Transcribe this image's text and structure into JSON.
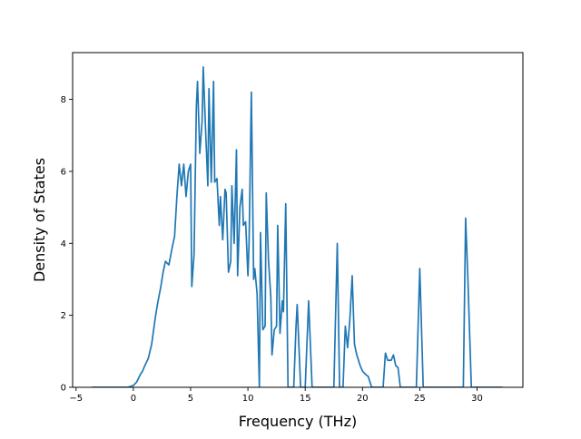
{
  "chart_data": {
    "type": "line",
    "title": "",
    "xlabel": "Frequency (THz)",
    "ylabel": "Density of States",
    "xlim": [
      -5.3,
      34.0
    ],
    "ylim": [
      0,
      9.3
    ],
    "xticks": [
      -5,
      0,
      5,
      10,
      15,
      20,
      25,
      30
    ],
    "yticks": [
      0,
      2,
      4,
      6,
      8
    ],
    "xtick_labels": [
      "−5",
      "0",
      "5",
      "10",
      "15",
      "20",
      "25",
      "30"
    ],
    "ytick_labels": [
      "0",
      "2",
      "4",
      "6",
      "8"
    ],
    "grid": false,
    "legend": "none",
    "series": [
      {
        "color": "#1f77b4",
        "x": [
          -3.6,
          -0.5,
          0.0,
          0.3,
          0.6,
          0.8,
          1.0,
          1.3,
          1.6,
          1.9,
          2.1,
          2.4,
          2.6,
          2.8,
          3.1,
          3.4,
          3.6,
          3.8,
          4.0,
          4.2,
          4.4,
          4.6,
          4.8,
          5.0,
          5.1,
          5.3,
          5.5,
          5.6,
          5.8,
          6.0,
          6.1,
          6.3,
          6.5,
          6.6,
          6.8,
          7.0,
          7.1,
          7.3,
          7.5,
          7.6,
          7.8,
          8.0,
          8.1,
          8.3,
          8.5,
          8.6,
          8.8,
          9.0,
          9.1,
          9.3,
          9.5,
          9.6,
          9.8,
          10.0,
          10.1,
          10.3,
          10.5,
          10.6,
          10.8,
          11.0,
          11.1,
          11.3,
          11.5,
          11.6,
          11.8,
          12.0,
          12.1,
          12.3,
          12.5,
          12.6,
          12.8,
          13.0,
          13.1,
          13.3,
          13.5,
          13.6,
          13.8,
          14.0,
          14.2,
          14.3,
          14.6,
          15.0,
          15.3,
          15.6,
          16.0,
          16.3,
          16.6,
          17.0,
          17.5,
          17.8,
          18.0,
          18.3,
          18.5,
          18.7,
          18.9,
          19.1,
          19.3,
          19.5,
          19.8,
          20.0,
          20.3,
          20.5,
          20.8,
          21.3,
          21.8,
          22.0,
          22.2,
          22.5,
          22.7,
          22.9,
          23.1,
          23.3,
          24.0,
          24.7,
          25.0,
          25.3,
          25.6,
          27.0,
          28.5,
          28.8,
          29.0,
          29.2,
          29.5,
          31.0,
          32.2
        ],
        "y": [
          0,
          0,
          0.05,
          0.15,
          0.35,
          0.45,
          0.6,
          0.8,
          1.2,
          1.9,
          2.3,
          2.8,
          3.2,
          3.5,
          3.4,
          3.9,
          4.2,
          5.3,
          6.2,
          5.6,
          6.2,
          5.3,
          6.0,
          6.2,
          2.8,
          3.7,
          7.8,
          8.5,
          6.5,
          7.4,
          8.9,
          7.2,
          5.6,
          8.3,
          5.7,
          8.5,
          5.7,
          5.8,
          4.5,
          5.3,
          4.1,
          5.5,
          5.4,
          3.2,
          3.5,
          5.6,
          4.0,
          6.6,
          3.1,
          5.0,
          5.5,
          4.5,
          4.6,
          3.1,
          4.0,
          8.2,
          3.0,
          3.3,
          2.6,
          0,
          4.3,
          1.6,
          1.7,
          5.4,
          3.5,
          2.5,
          0.9,
          1.6,
          1.7,
          4.5,
          1.5,
          2.4,
          2.1,
          5.1,
          0,
          0,
          0,
          0,
          1.7,
          2.3,
          0,
          0,
          2.4,
          0,
          0,
          0,
          0,
          0,
          0,
          4.0,
          0,
          0,
          1.7,
          1.1,
          1.9,
          3.1,
          1.2,
          0.9,
          0.6,
          0.45,
          0.35,
          0.3,
          0,
          0,
          0,
          0.95,
          0.75,
          0.75,
          0.9,
          0.6,
          0.55,
          0,
          0,
          0,
          3.3,
          0,
          0,
          0,
          0,
          0,
          4.7,
          3.0,
          0,
          0,
          0
        ]
      }
    ]
  }
}
